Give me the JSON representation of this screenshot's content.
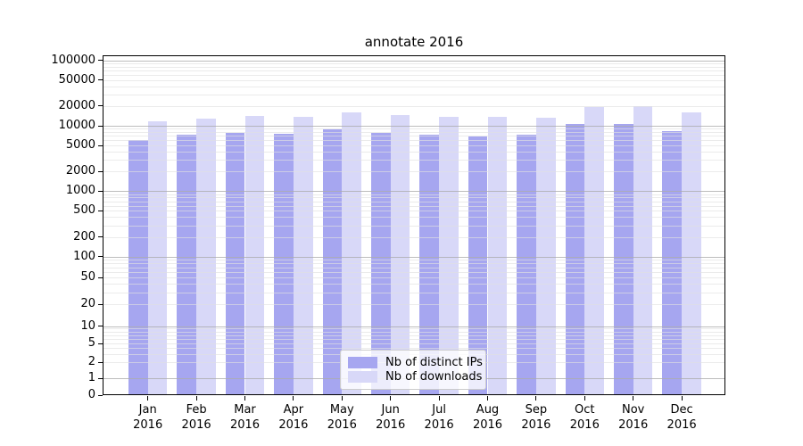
{
  "title": "annotate 2016",
  "chart_data": {
    "type": "bar",
    "title": "annotate 2016",
    "yscale": "symlog",
    "ylim": [
      0,
      100000
    ],
    "grid": true,
    "legend_position": "lower center",
    "months": [
      "Jan",
      "Feb",
      "Mar",
      "Apr",
      "May",
      "Jun",
      "Jul",
      "Aug",
      "Sep",
      "Oct",
      "Nov",
      "Dec"
    ],
    "year": "2016",
    "y_ticks": [
      100000,
      50000,
      20000,
      10000,
      5000,
      2000,
      1000,
      500,
      200,
      100,
      50,
      20,
      10,
      5,
      2,
      1,
      0
    ],
    "series": [
      {
        "name": "Nb of distinct IPs",
        "color": "#a6a6f0",
        "values": [
          6100,
          7200,
          7900,
          7600,
          8700,
          7900,
          7200,
          6900,
          7200,
          10600,
          10700,
          8400
        ]
      },
      {
        "name": "Nb of downloads",
        "color": "#d8d8f8",
        "values": [
          11700,
          12700,
          14300,
          13600,
          16000,
          14600,
          13800,
          13600,
          13300,
          19200,
          20100,
          16000
        ]
      }
    ]
  }
}
